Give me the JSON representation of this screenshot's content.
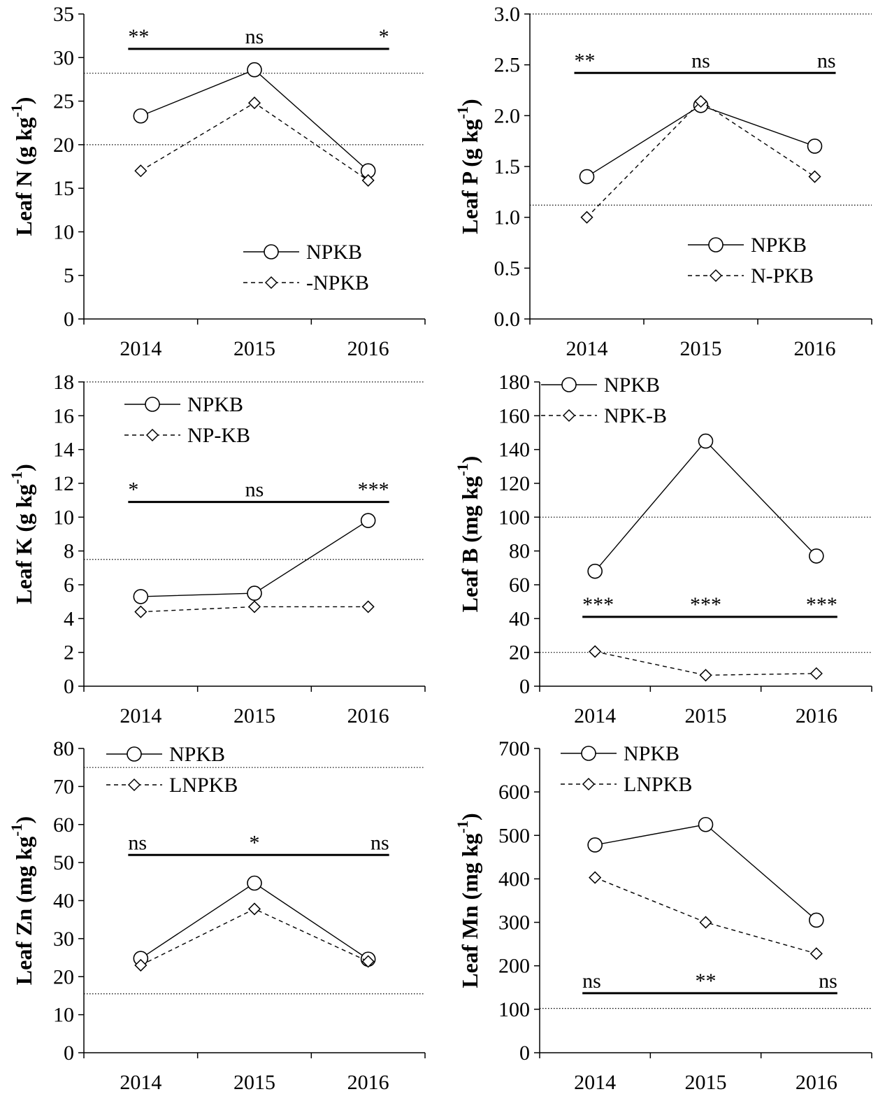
{
  "chart_data": [
    {
      "type": "line",
      "categories": [
        "2014",
        "2015",
        "2016"
      ],
      "ylabel": "Leaf N (g kg",
      "ylabel_sup": "-1",
      "ylabel_end": ")",
      "ylim": [
        0,
        35
      ],
      "yticks": [
        0,
        5,
        10,
        15,
        20,
        25,
        30,
        35
      ],
      "reference_lines": [
        20,
        28.2
      ],
      "series": [
        {
          "name": "NPKB",
          "marker": "circle",
          "dash": "solid",
          "values": [
            23.3,
            28.6,
            17.0
          ]
        },
        {
          "name": "-NPKB",
          "marker": "diamond",
          "dash": "dashed",
          "values": [
            17.0,
            24.8,
            15.9
          ]
        }
      ],
      "significance": {
        "level": 31.0,
        "labels": [
          "**",
          "ns",
          "*"
        ]
      },
      "legend_position": "lower-right"
    },
    {
      "type": "line",
      "categories": [
        "2014",
        "2015",
        "2016"
      ],
      "ylabel": "Leaf P (g kg",
      "ylabel_sup": "-1",
      "ylabel_end": ")",
      "ylim": [
        0,
        3.0
      ],
      "yticks": [
        "0.0",
        "0.5",
        "1.0",
        "1.5",
        "2.0",
        "2.5",
        "3.0"
      ],
      "reference_lines": [
        1.12,
        3.0
      ],
      "series": [
        {
          "name": "NPKB",
          "marker": "circle",
          "dash": "solid",
          "values": [
            1.4,
            2.1,
            1.7
          ]
        },
        {
          "name": "N-PKB",
          "marker": "diamond",
          "dash": "dashed",
          "values": [
            1.0,
            2.14,
            1.4
          ]
        }
      ],
      "significance": {
        "level": 2.42,
        "labels": [
          "**",
          "ns",
          "ns"
        ]
      },
      "legend_position": "lower-right"
    },
    {
      "type": "line",
      "categories": [
        "2014",
        "2015",
        "2016"
      ],
      "ylabel": "Leaf K (g kg",
      "ylabel_sup": "-1",
      "ylabel_end": ")",
      "ylim": [
        0,
        18
      ],
      "yticks": [
        0,
        2,
        4,
        6,
        8,
        10,
        12,
        14,
        16,
        18
      ],
      "reference_lines": [
        7.5,
        18
      ],
      "series": [
        {
          "name": "NPKB",
          "marker": "circle",
          "dash": "solid",
          "values": [
            5.3,
            5.5,
            9.8
          ]
        },
        {
          "name": "NP-KB",
          "marker": "diamond",
          "dash": "dashed",
          "values": [
            4.4,
            4.7,
            4.7
          ]
        }
      ],
      "significance": {
        "level": 10.9,
        "labels": [
          "*",
          "ns",
          "***"
        ]
      },
      "legend_position": "top-left"
    },
    {
      "type": "line",
      "categories": [
        "2014",
        "2015",
        "2016"
      ],
      "ylabel": "Leaf B (mg kg",
      "ylabel_sup": "-1",
      "ylabel_end": ")",
      "ylim": [
        0,
        180
      ],
      "yticks": [
        0,
        20,
        40,
        60,
        80,
        100,
        120,
        140,
        160,
        180
      ],
      "reference_lines": [
        20,
        100
      ],
      "series": [
        {
          "name": "NPKB",
          "marker": "circle",
          "dash": "solid",
          "values": [
            68,
            145,
            77
          ]
        },
        {
          "name": "NPK-B",
          "marker": "diamond",
          "dash": "dashed",
          "values": [
            20.5,
            6.5,
            7.5
          ]
        }
      ],
      "significance": {
        "level": 41,
        "labels": [
          "***",
          "***",
          "***"
        ]
      },
      "legend_position": "top-left"
    },
    {
      "type": "line",
      "categories": [
        "2014",
        "2015",
        "2016"
      ],
      "ylabel": "Leaf Zn (mg kg",
      "ylabel_sup": "-1",
      "ylabel_end": ")",
      "ylim": [
        0,
        80
      ],
      "yticks": [
        0,
        10,
        20,
        30,
        40,
        50,
        60,
        70,
        80
      ],
      "reference_lines": [
        15.5,
        75
      ],
      "series": [
        {
          "name": "NPKB",
          "marker": "circle",
          "dash": "solid",
          "values": [
            24.8,
            44.6,
            24.6
          ]
        },
        {
          "name": "LNPKB",
          "marker": "diamond",
          "dash": "dashed",
          "values": [
            23.0,
            37.8,
            24.0
          ]
        }
      ],
      "significance": {
        "level": 52,
        "labels": [
          "ns",
          "*",
          "ns"
        ]
      },
      "legend_position": "top-left"
    },
    {
      "type": "line",
      "categories": [
        "2014",
        "2015",
        "2016"
      ],
      "ylabel": "Leaf Mn (mg kg",
      "ylabel_sup": "-1",
      "ylabel_end": ")",
      "ylim": [
        0,
        700
      ],
      "yticks": [
        0,
        100,
        200,
        300,
        400,
        500,
        600,
        700
      ],
      "reference_lines": [
        102
      ],
      "series": [
        {
          "name": "NPKB",
          "marker": "circle",
          "dash": "solid",
          "values": [
            478,
            525,
            305
          ]
        },
        {
          "name": "LNPKB",
          "marker": "diamond",
          "dash": "dashed",
          "values": [
            403,
            300,
            228
          ]
        }
      ],
      "significance": {
        "level": 137,
        "labels": [
          "ns",
          "**",
          "ns"
        ]
      },
      "legend_position": "top-left"
    }
  ]
}
